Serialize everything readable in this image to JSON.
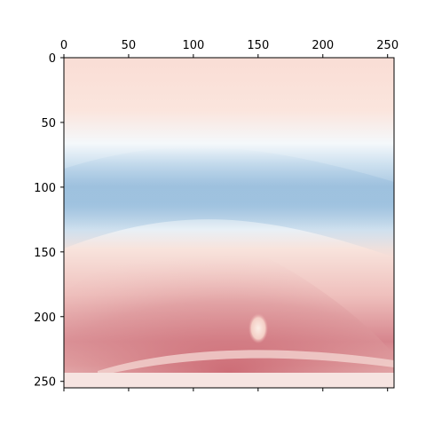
{
  "chart_data": {
    "type": "heatmap",
    "title": "",
    "xlabel": "",
    "ylabel": "",
    "xlim": [
      0,
      255
    ],
    "ylim": [
      255,
      0
    ],
    "x_axis_position": "top",
    "y_axis_inverted": true,
    "x_ticks": [
      0,
      50,
      100,
      150,
      200,
      250
    ],
    "y_ticks": [
      0,
      50,
      100,
      150,
      200,
      250
    ],
    "x_tick_labels": [
      "0",
      "50",
      "100",
      "150",
      "200",
      "250"
    ],
    "y_tick_labels": [
      "0",
      "50",
      "100",
      "150",
      "200",
      "250"
    ],
    "grid": false,
    "colormap": "RdBu_r",
    "colors": {
      "low": "#2166ac",
      "mid": "#f7f7f7",
      "high": "#b2182b"
    },
    "features": [
      {
        "description": "light pink upper region",
        "rows": [
          0,
          70
        ],
        "intensity": 0.25
      },
      {
        "description": "blue band curving around row 120",
        "rows": [
          85,
          165
        ],
        "intensity": -0.45
      },
      {
        "description": "red dome region",
        "rows": [
          150,
          245
        ],
        "intensity": 0.55
      },
      {
        "description": "light spot",
        "x": 150,
        "y": 210,
        "intensity": 0.15
      }
    ]
  }
}
